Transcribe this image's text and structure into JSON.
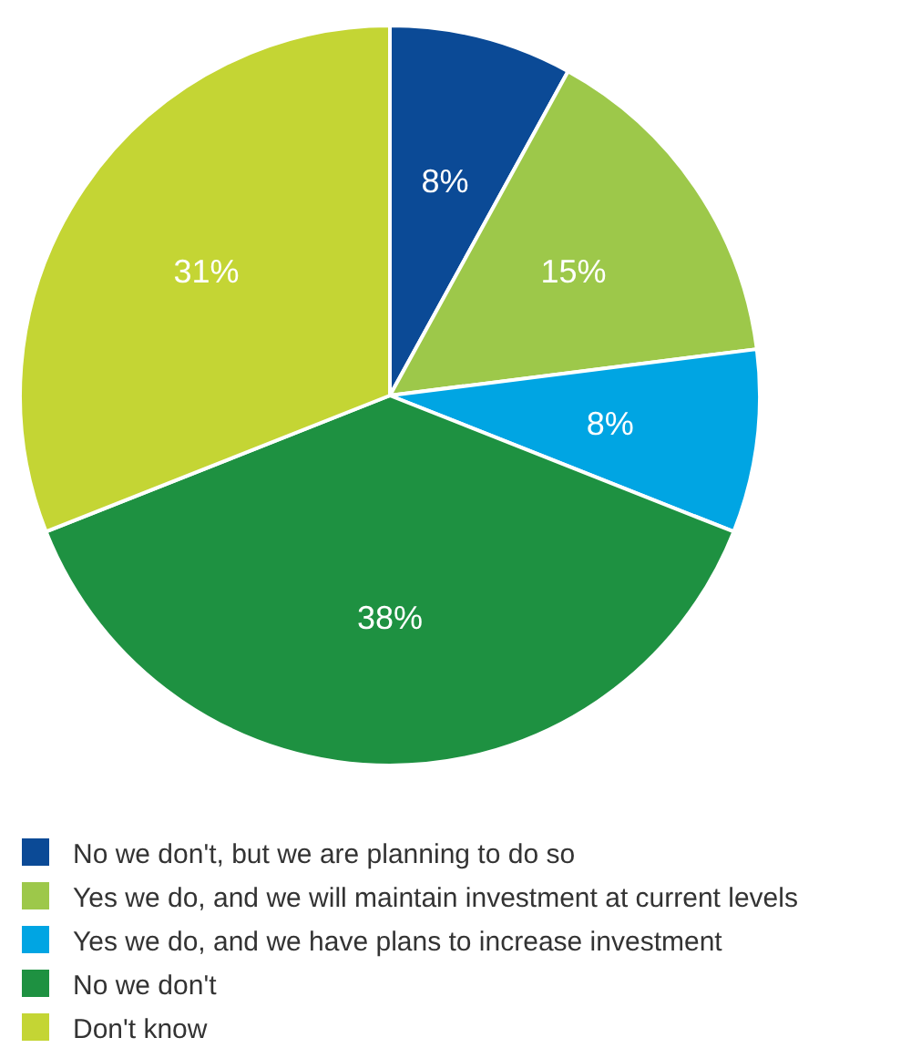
{
  "chart_data": {
    "type": "pie",
    "categories": [
      "No we don't, but we are planning to do so",
      "Yes we do, and we will maintain investment at current levels",
      "Yes we do, and we have plans to increase investment",
      "No we don't",
      "Don't know"
    ],
    "values": [
      8,
      15,
      8,
      38,
      31
    ],
    "colors": [
      "#0b4a96",
      "#9dc84a",
      "#00a5e3",
      "#1e9141",
      "#c4d534"
    ],
    "value_labels": [
      "8%",
      "15%",
      "8%",
      "38%",
      "31%"
    ],
    "legend": "bottom"
  }
}
